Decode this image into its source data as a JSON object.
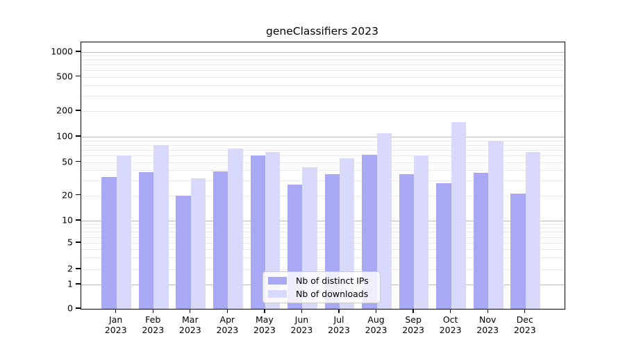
{
  "title": "geneClassifiers 2023",
  "chart_data": {
    "type": "bar",
    "title": "geneClassifiers 2023",
    "yscale": "symlog",
    "categories": [
      "Jan",
      "Feb",
      "Mar",
      "Apr",
      "May",
      "Jun",
      "Jul",
      "Aug",
      "Sep",
      "Oct",
      "Nov",
      "Dec"
    ],
    "category_year": "2023",
    "series": [
      {
        "name": "Nb of distinct IPs",
        "color": "#a8a8f5",
        "values": [
          33,
          38,
          20,
          39,
          60,
          27,
          36,
          61,
          36,
          28,
          37,
          21
        ]
      },
      {
        "name": "Nb of downloads",
        "color": "#d9d9fb",
        "values": [
          60,
          80,
          32,
          72,
          66,
          43,
          56,
          110,
          60,
          148,
          90,
          66
        ]
      }
    ],
    "yticks": [
      0,
      1,
      2,
      5,
      10,
      20,
      50,
      100,
      200,
      500,
      1000
    ],
    "ylim": [
      0,
      1000
    ],
    "grid": true,
    "legend_position": "lower center"
  }
}
